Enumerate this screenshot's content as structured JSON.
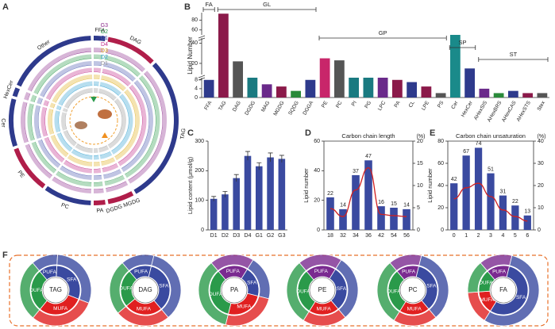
{
  "chart_data": [
    {
      "type": "circular",
      "panel": "A",
      "sectors": [
        "FFA",
        "DAG",
        "TAG",
        "DGDG MGDG",
        "PA",
        "PC",
        "PE",
        "Cer",
        "HexCer",
        "Other"
      ],
      "sector_colors": [
        "#2e3a8c",
        "#b01e4a",
        "#2e3a8c",
        "#b01e4a",
        "#b01e4a",
        "#2e3a8c",
        "#b01e4a",
        "#2e3a8c",
        "#2e3a8c",
        "#2e3a8c"
      ],
      "rings": [
        "G3",
        "G2",
        "G1",
        "D4",
        "D3",
        "D2",
        "D1"
      ],
      "ring_colors": [
        "#8b2a8b",
        "#2a9a4a",
        "#4a5ab0",
        "#c02a8a",
        "#e0b020",
        "#30a0d0",
        "#999999"
      ]
    },
    {
      "type": "broken-bar",
      "panel": "B",
      "ylabel": "Lipid Number",
      "categories": [
        "FFA",
        "TAG",
        "DAG",
        "DGDG",
        "MAG",
        "MGDG",
        "SQDG",
        "DGGA",
        "PE",
        "PC",
        "PI",
        "PG",
        "LPC",
        "PA",
        "CL",
        "LPE",
        "PS",
        "Cer",
        "HexCer",
        "AHexSIS",
        "AHexBRS",
        "AHexCAS",
        "AHexSTS",
        "Stex"
      ],
      "values": [
        8,
        93,
        22,
        9,
        6,
        5,
        3,
        8,
        25,
        23,
        9,
        9,
        9,
        8,
        7,
        5,
        2,
        47,
        15,
        4,
        2,
        3,
        2,
        2
      ],
      "colors": [
        "#2e3a8c",
        "#8b1a4a",
        "#555555",
        "#1a7a80",
        "#6a2a8a",
        "#8b1a4a",
        "#2a8a3a",
        "#2e3a8c",
        "#c8266a",
        "#555555",
        "#1a7a80",
        "#1a7a80",
        "#6a2a8a",
        "#8b1a4a",
        "#2e3a8c",
        "#8b1a4a",
        "#555555",
        "#1a8a8a",
        "#2e3a8c",
        "#6a2a8a",
        "#2a8a3a",
        "#2e3a8c",
        "#8b1a4a",
        "#555555"
      ],
      "ysegments": [
        [
          0,
          9
        ],
        [
          9,
          45
        ],
        [
          50,
          95
        ]
      ],
      "yticks": [
        0,
        4,
        8,
        20,
        40,
        60,
        80
      ],
      "groups": [
        {
          "label": "FA",
          "start": 0,
          "end": 0
        },
        {
          "label": "GL",
          "start": 1,
          "end": 7
        },
        {
          "label": "GP",
          "start": 8,
          "end": 16
        },
        {
          "label": "SP",
          "start": 17,
          "end": 18
        },
        {
          "label": "ST",
          "start": 19,
          "end": 23
        }
      ]
    },
    {
      "type": "bar",
      "panel": "C",
      "ylabel": "Lipid content (μmol/g)",
      "categories": [
        "D1",
        "D2",
        "D3",
        "D4",
        "G1",
        "G2",
        "G3"
      ],
      "values": [
        105,
        120,
        175,
        250,
        215,
        245,
        240
      ],
      "errors": [
        8,
        10,
        12,
        15,
        12,
        15,
        12
      ],
      "color": "#3a4aa0",
      "ylim": [
        0,
        300
      ],
      "yticks": [
        0,
        100,
        200,
        300
      ]
    },
    {
      "type": "bar-line",
      "panel": "D",
      "title": "Carbon chain length",
      "ylabel": "Lipid number",
      "y2label": "(%)",
      "categories": [
        "18",
        "32",
        "34",
        "36",
        "42",
        "54",
        "56"
      ],
      "values": [
        22,
        14,
        37,
        47,
        16,
        15,
        14
      ],
      "color": "#3a4aa0",
      "line": {
        "values": [
          4.8,
          3,
          9,
          14,
          3.5,
          3.2,
          3
        ],
        "color": "#d02020"
      },
      "ylim": [
        0,
        60
      ],
      "yticks": [
        0,
        20,
        40,
        60
      ],
      "y2lim": [
        0,
        20
      ],
      "y2ticks": [
        0,
        5,
        10,
        15,
        20
      ]
    },
    {
      "type": "bar-line",
      "panel": "E",
      "title": "Carbon chain unsaturation",
      "ylabel": "Lipid number",
      "y2label": "(%)",
      "categories": [
        "0",
        "1",
        "2",
        "3",
        "4",
        "5",
        "6"
      ],
      "values": [
        42,
        67,
        74,
        51,
        31,
        22,
        13
      ],
      "color": "#3a4aa0",
      "line": {
        "values": [
          14,
          19,
          21,
          15,
          9,
          6,
          4
        ],
        "color": "#d02020"
      },
      "ylim": [
        0,
        80
      ],
      "yticks": [
        0,
        20,
        40,
        60,
        80
      ],
      "y2lim": [
        0,
        40
      ],
      "y2ticks": [
        0,
        10,
        20,
        30,
        40
      ]
    },
    {
      "type": "donut",
      "panel": "F",
      "charts": [
        {
          "label": "TAG",
          "groups": [
            "PUFA",
            "SFA",
            "MUFA",
            "DUFA"
          ],
          "values": [
            12,
            30,
            30,
            28
          ],
          "colors": [
            "#3a4aa0",
            "#3a4aa0",
            "#e02020",
            "#2a9a4a"
          ]
        },
        {
          "label": "DAG",
          "groups": [
            "PUFA",
            "SFA",
            "MUFA",
            "DUFA"
          ],
          "values": [
            15,
            35,
            25,
            25
          ],
          "colors": [
            "#3a4aa0",
            "#3a4aa0",
            "#e02020",
            "#2a9a4a"
          ]
        },
        {
          "label": "PA",
          "groups": [
            "PUFA",
            "SFA",
            "MUFA",
            "DUFA"
          ],
          "values": [
            20,
            20,
            25,
            35
          ],
          "colors": [
            "#7a2a90",
            "#3a4aa0",
            "#e02020",
            "#2a9a4a"
          ]
        },
        {
          "label": "PE",
          "groups": [
            "PUFA",
            "SFA",
            "MUFA",
            "DUFA"
          ],
          "values": [
            20,
            30,
            20,
            30
          ],
          "colors": [
            "#7a2a90",
            "#3a4aa0",
            "#e02020",
            "#2a9a4a"
          ]
        },
        {
          "label": "PC",
          "groups": [
            "PUFA",
            "SFA",
            "MUFA",
            "DUFA"
          ],
          "values": [
            15,
            35,
            20,
            30
          ],
          "colors": [
            "#7a2a90",
            "#3a4aa0",
            "#e02020",
            "#2a9a4a"
          ]
        },
        {
          "label": "FA",
          "groups": [
            "PUFA",
            "SFA",
            "MUFA",
            "DUFA"
          ],
          "values": [
            15,
            55,
            15,
            15
          ],
          "colors": [
            "#7a2a90",
            "#3a4aa0",
            "#e02020",
            "#2a9a4a"
          ]
        }
      ]
    }
  ]
}
